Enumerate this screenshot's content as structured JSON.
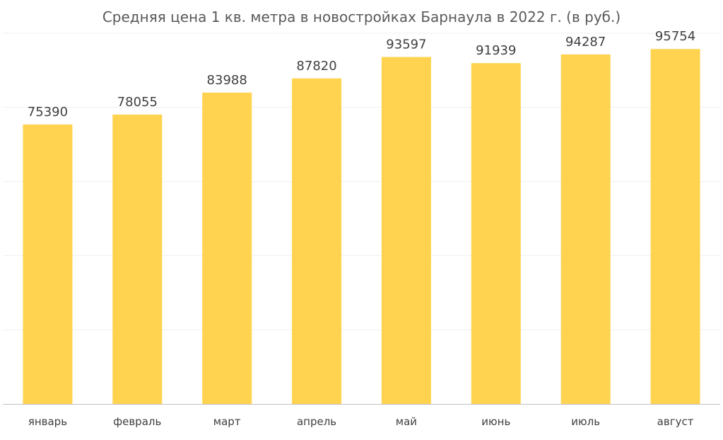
{
  "chart_data": {
    "type": "bar",
    "title": "Средняя цена 1 кв. метра в новостройках Барнаула в 2022 г. (в руб.)",
    "categories": [
      "январь",
      "февраль",
      "март",
      "апрель",
      "май",
      "июнь",
      "июль",
      "август"
    ],
    "values": [
      75390,
      78055,
      83988,
      87820,
      93597,
      91939,
      94287,
      95754
    ],
    "xlabel": "",
    "ylabel": "",
    "ylim": [
      0,
      100000
    ],
    "grid": true,
    "legend": "none",
    "data_labels": true,
    "colors": {
      "bar": "#FFD34F",
      "grid": "#EFEFEF",
      "axis": "#BFBFBF",
      "title": "#595959",
      "text": "#404040"
    }
  }
}
